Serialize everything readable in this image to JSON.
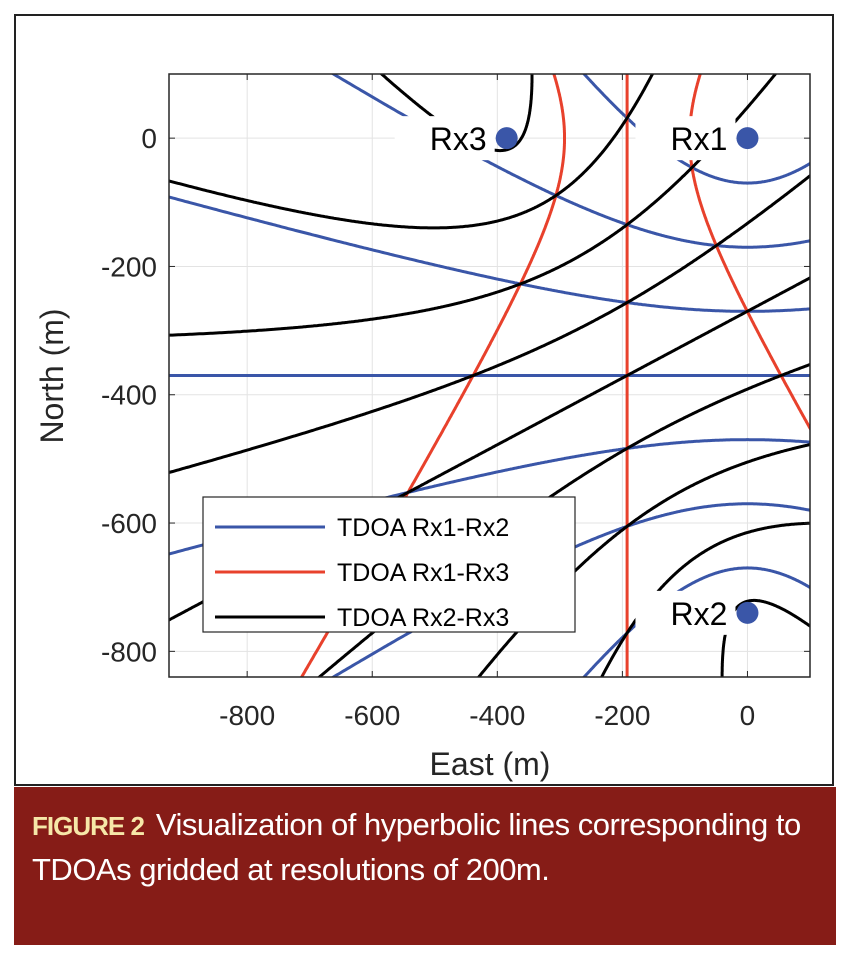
{
  "chart_data": {
    "type": "line",
    "xlabel": "East (m)",
    "ylabel": "North (m)",
    "xlim": [
      -925,
      100
    ],
    "ylim": [
      -840,
      100
    ],
    "xticks": [
      -800,
      -600,
      -400,
      -200,
      0
    ],
    "yticks": [
      0,
      -200,
      -400,
      -600,
      -800
    ],
    "xtick_labels": [
      "-800",
      "-600",
      "-400",
      "-200",
      "0"
    ],
    "ytick_labels": [
      "0",
      "-200",
      "-400",
      "-600",
      "-800"
    ],
    "grid": true,
    "legend_position": "bottom-left",
    "receivers": [
      {
        "name": "Rx1",
        "x": 0,
        "y": 0
      },
      {
        "name": "Rx2",
        "x": 0,
        "y": -740
      },
      {
        "name": "Rx3",
        "x": -385,
        "y": 0
      }
    ],
    "receiver_color": "#3a56a8",
    "series": [
      {
        "name": "TDOA Rx1-Rx2",
        "pair": [
          0,
          1
        ],
        "color": "#3a56a8",
        "range_differences_m": [
          -600,
          -400,
          -200,
          0,
          200,
          400,
          600
        ]
      },
      {
        "name": "TDOA Rx1-Rx3",
        "pair": [
          0,
          2
        ],
        "color": "#e8412c",
        "range_differences_m": [
          -200,
          0,
          200
        ]
      },
      {
        "name": "TDOA Rx2-Rx3",
        "pair": [
          1,
          2
        ],
        "color": "#000000",
        "range_differences_m": [
          -800,
          -600,
          -400,
          -200,
          0,
          200,
          400,
          600,
          800
        ]
      }
    ]
  },
  "caption": {
    "label": "FIGURE 2",
    "text": "Visualization of hyperbolic lines corresponding to TDOAs gridded at resolutions of 200m."
  }
}
